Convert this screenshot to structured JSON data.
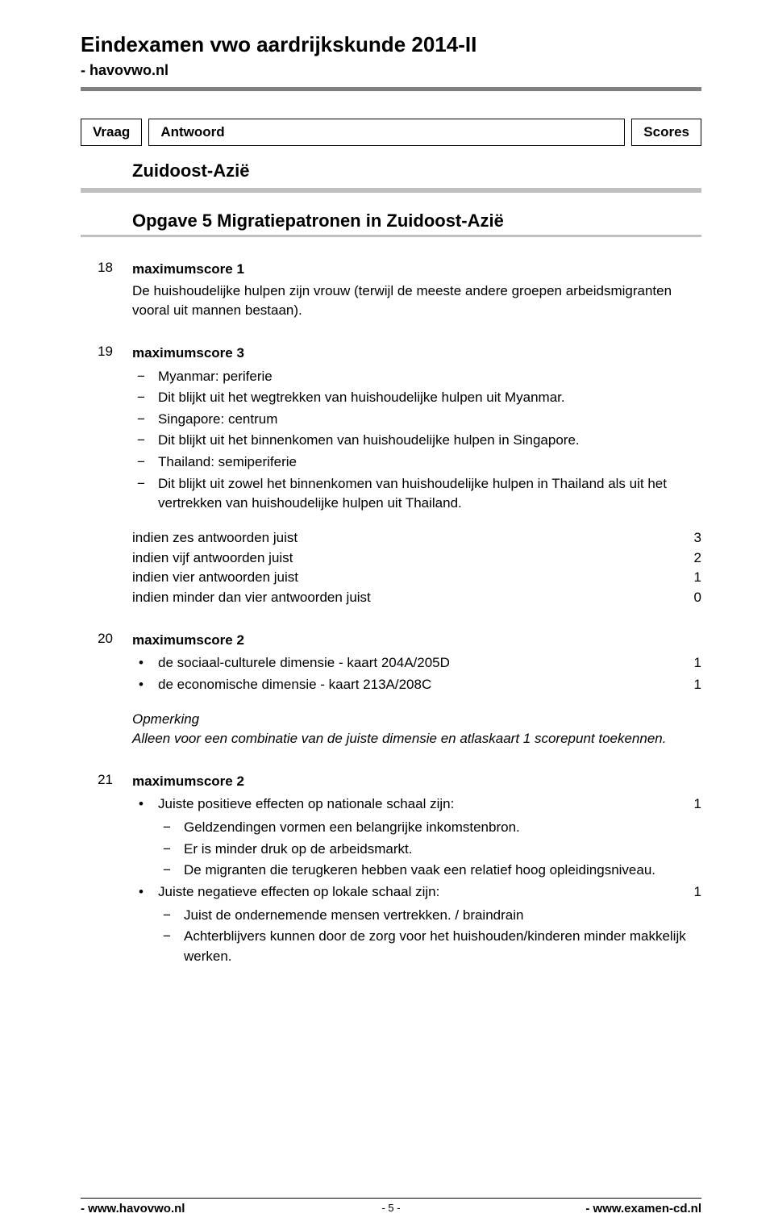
{
  "header": {
    "title": "Eindexamen vwo aardrijkskunde 2014-II",
    "subtitle": "- havovwo.nl"
  },
  "vas": {
    "vraag": "Vraag",
    "antwoord": "Antwoord",
    "scores": "Scores"
  },
  "section": {
    "title": "Zuidoost-Azië",
    "subtitle": "Opgave 5  Migratiepatronen in Zuidoost-Azië"
  },
  "q18": {
    "num": "18",
    "maxscore": "maximumscore 1",
    "text": "De huishoudelijke hulpen zijn vrouw (terwijl de meeste andere groepen arbeidsmigranten vooral uit mannen bestaan)."
  },
  "q19": {
    "num": "19",
    "maxscore": "maximumscore 3",
    "items": [
      "Myanmar: periferie",
      "Dit blijkt uit het wegtrekken van huishoudelijke hulpen uit Myanmar.",
      "Singapore: centrum",
      "Dit blijkt uit het binnenkomen van huishoudelijke hulpen in Singapore.",
      "Thailand: semiperiferie",
      "Dit blijkt uit zowel het binnenkomen van huishoudelijke hulpen in Thailand als uit het vertrekken van huishoudelijke hulpen uit Thailand."
    ],
    "scoring": [
      {
        "text": "indien zes antwoorden juist",
        "pts": "3"
      },
      {
        "text": "indien vijf antwoorden juist",
        "pts": "2"
      },
      {
        "text": "indien vier antwoorden juist",
        "pts": "1"
      },
      {
        "text": "indien minder dan vier antwoorden juist",
        "pts": "0"
      }
    ]
  },
  "q20": {
    "num": "20",
    "maxscore": "maximumscore 2",
    "bullets": [
      {
        "text": "de sociaal-culturele dimensie - kaart 204A/205D",
        "pts": "1"
      },
      {
        "text": "de economische dimensie - kaart 213A/208C",
        "pts": "1"
      }
    ],
    "remark_label": "Opmerking",
    "remark_text": "Alleen voor een combinatie van de juiste dimensie en atlaskaart 1 scorepunt toekennen."
  },
  "q21": {
    "num": "21",
    "maxscore": "maximumscore 2",
    "pos_label": "Juiste positieve effecten op nationale schaal zijn:",
    "pos_pts": "1",
    "pos_items": [
      "Geldzendingen vormen een belangrijke inkomstenbron.",
      "Er is minder druk op de arbeidsmarkt.",
      "De migranten die terugkeren hebben vaak een relatief hoog opleidingsniveau."
    ],
    "neg_label": "Juiste negatieve effecten op lokale schaal zijn:",
    "neg_pts": "1",
    "neg_items": [
      "Juist de ondernemende mensen vertrekken. / braindrain",
      "Achterblijvers kunnen door de zorg voor het huishouden/kinderen minder makkelijk werken."
    ]
  },
  "footer": {
    "left": "- www.havovwo.nl",
    "center": "- 5 -",
    "right": "- www.examen-cd.nl"
  }
}
